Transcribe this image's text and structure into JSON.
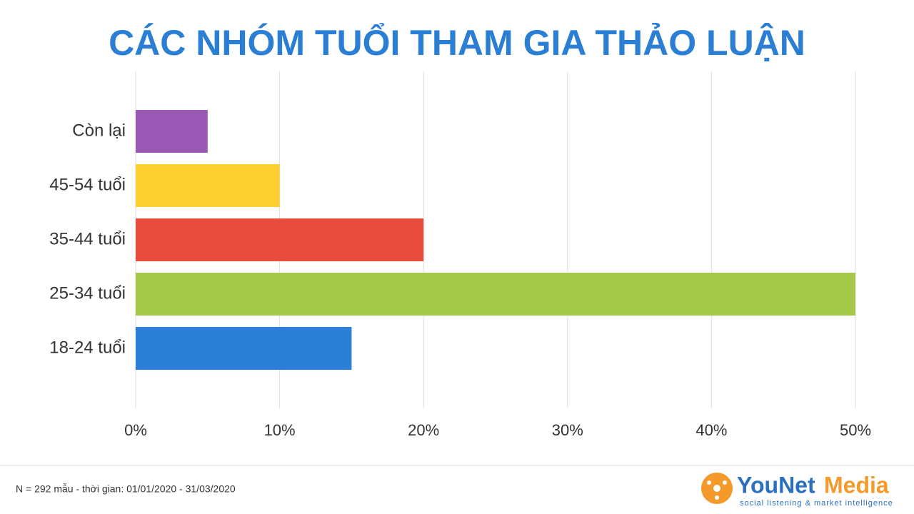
{
  "chart_data": {
    "type": "hbar",
    "title": "CÁC NHÓM TUỔI THAM GIA THẢO LUẬN",
    "categories": [
      "Còn lại",
      "45-54 tuổi",
      "35-44 tuổi",
      "25-34 tuổi",
      "18-24 tuổi"
    ],
    "values": [
      5,
      10,
      20,
      50,
      15
    ],
    "colors": [
      "#9b59b6",
      "#fdd02f",
      "#e74c3c",
      "#a5c84a",
      "#2c7fd6"
    ],
    "xlim": [
      0,
      50
    ],
    "xticks": [
      {
        "value": 0,
        "label": "0%"
      },
      {
        "value": 10,
        "label": "10%"
      },
      {
        "value": 20,
        "label": "20%"
      },
      {
        "value": 30,
        "label": "30%"
      },
      {
        "value": 40,
        "label": "40%"
      },
      {
        "value": 50,
        "label": "50%"
      }
    ],
    "grid": true
  },
  "footer": {
    "note": "N = 292 mẫu - thời gian: 01/01/2020 - 31/03/2020",
    "logo": {
      "name": "YouNet",
      "name2": "Media",
      "tagline": "social listening & market intelligence"
    }
  }
}
